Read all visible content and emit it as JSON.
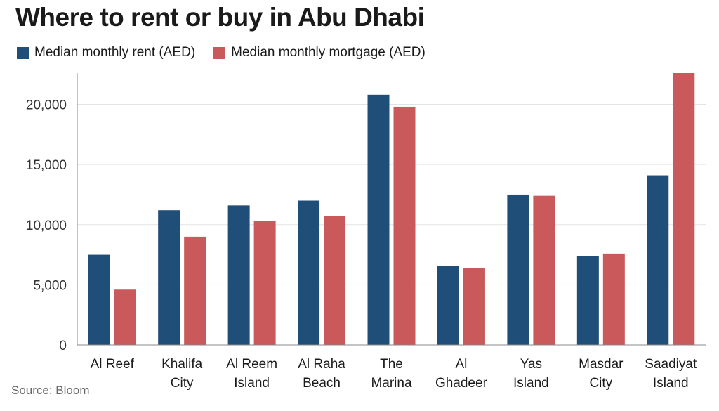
{
  "chart_data": {
    "type": "bar",
    "title": "Where to rent or buy in Abu Dhabi",
    "categories": [
      [
        "Al Reef"
      ],
      [
        "Khalifa",
        "City"
      ],
      [
        "Al Reem",
        "Island"
      ],
      [
        "Al Raha",
        "Beach"
      ],
      [
        "The",
        "Marina"
      ],
      [
        "Al",
        "Ghadeer"
      ],
      [
        "Yas",
        "Island"
      ],
      [
        "Masdar",
        "City"
      ],
      [
        "Saadiyat",
        "Island"
      ]
    ],
    "series": [
      {
        "name": "Median monthly rent (AED)",
        "color": "#1f4e79",
        "values": [
          7500,
          11200,
          11600,
          12000,
          20800,
          6600,
          12500,
          7400,
          14100
        ]
      },
      {
        "name": "Median monthly mortgage (AED)",
        "color": "#c9595a",
        "values": [
          4600,
          9000,
          10300,
          10700,
          19800,
          6400,
          12400,
          7600,
          22600
        ]
      }
    ],
    "ylim": [
      0,
      22600
    ],
    "yticks": [
      0,
      5000,
      10000,
      15000,
      20000
    ],
    "ytick_labels": [
      "0",
      "5,000",
      "10,000",
      "15,000",
      "20,000"
    ],
    "grid": true,
    "legend_position": "top-left",
    "xlabel": "",
    "ylabel": ""
  },
  "source": "Source: Bloom"
}
